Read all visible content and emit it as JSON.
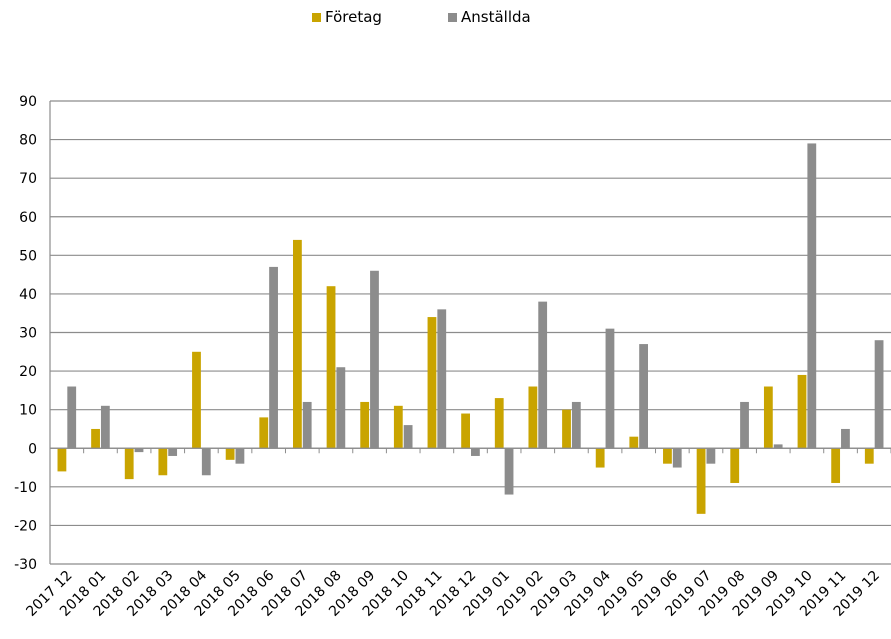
{
  "chart_data": {
    "type": "bar",
    "title": "",
    "xlabel": "",
    "ylabel": "",
    "ylim": [
      -30,
      90
    ],
    "yticks": [
      -30,
      -20,
      -10,
      0,
      10,
      20,
      30,
      40,
      50,
      60,
      70,
      80,
      90
    ],
    "grid": true,
    "legend_position": "top-center",
    "categories": [
      "2017 12",
      "2018 01",
      "2018 02",
      "2018 03",
      "2018 04",
      "2018 05",
      "2018 06",
      "2018 07",
      "2018 08",
      "2018 09",
      "2018 10",
      "2018 11",
      "2018 12",
      "2019 01",
      "2019 02",
      "2019 03",
      "2019 04",
      "2019 05",
      "2019 06",
      "2019 07",
      "2019 08",
      "2019 09",
      "2019 10",
      "2019 11",
      "2019 12"
    ],
    "series": [
      {
        "name": "Företag",
        "color": "#c9a400",
        "values": [
          -6,
          5,
          -8,
          -7,
          25,
          -3,
          8,
          54,
          42,
          12,
          11,
          34,
          9,
          13,
          16,
          10,
          -5,
          3,
          -4,
          -17,
          -9,
          16,
          19,
          -9,
          -4
        ]
      },
      {
        "name": "Anställda",
        "color": "#8c8c8c",
        "values": [
          16,
          11,
          -1,
          -2,
          -7,
          -4,
          47,
          12,
          21,
          46,
          6,
          36,
          -2,
          -12,
          38,
          12,
          31,
          27,
          -5,
          -4,
          12,
          1,
          79,
          5,
          28
        ]
      }
    ]
  }
}
